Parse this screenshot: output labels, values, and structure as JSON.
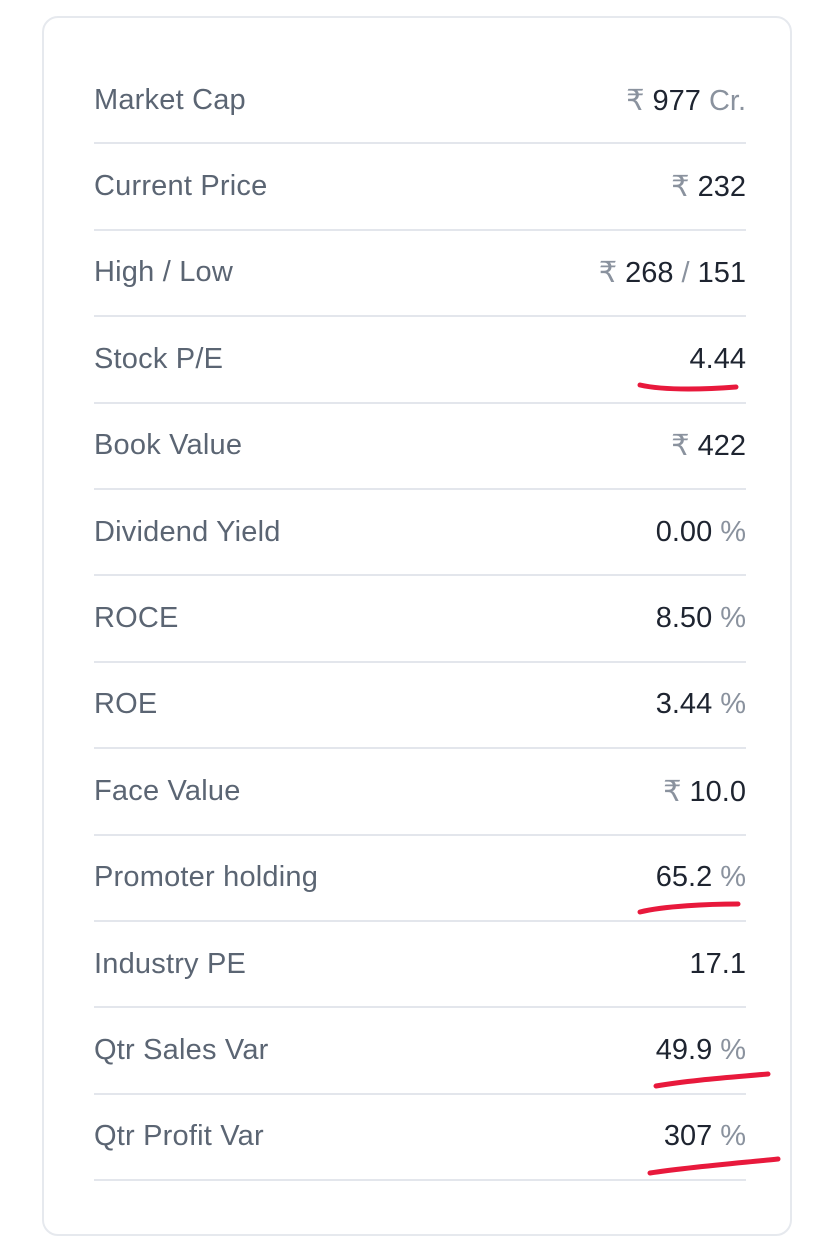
{
  "ratios": [
    {
      "label": "Market Cap",
      "prefix": "₹",
      "value": "977",
      "suffix": "Cr."
    },
    {
      "label": "Current Price",
      "prefix": "₹",
      "value": "232",
      "suffix": ""
    },
    {
      "label": "High / Low",
      "prefix": "₹",
      "value": "268",
      "separator": "/",
      "value2": "151"
    },
    {
      "label": "Stock P/E",
      "prefix": "",
      "value": "4.44",
      "suffix": ""
    },
    {
      "label": "Book Value",
      "prefix": "₹",
      "value": "422",
      "suffix": ""
    },
    {
      "label": "Dividend Yield",
      "prefix": "",
      "value": "0.00",
      "suffix": "%"
    },
    {
      "label": "ROCE",
      "prefix": "",
      "value": "8.50",
      "suffix": "%"
    },
    {
      "label": "ROE",
      "prefix": "",
      "value": "3.44",
      "suffix": "%"
    },
    {
      "label": "Face Value",
      "prefix": "₹",
      "value": "10.0",
      "suffix": ""
    },
    {
      "label": "Promoter holding",
      "prefix": "",
      "value": "65.2",
      "suffix": "%"
    },
    {
      "label": "Industry PE",
      "prefix": "",
      "value": "17.1",
      "suffix": ""
    },
    {
      "label": "Qtr Sales Var",
      "prefix": "",
      "value": "49.9",
      "suffix": "%"
    },
    {
      "label": "Qtr Profit Var",
      "prefix": "",
      "value": "307",
      "suffix": "%"
    }
  ],
  "colors": {
    "highlight": "#e8193c",
    "text": "#1e2430",
    "label": "#5b6573",
    "muted": "#8a929e",
    "divider": "#e3e6ec"
  }
}
